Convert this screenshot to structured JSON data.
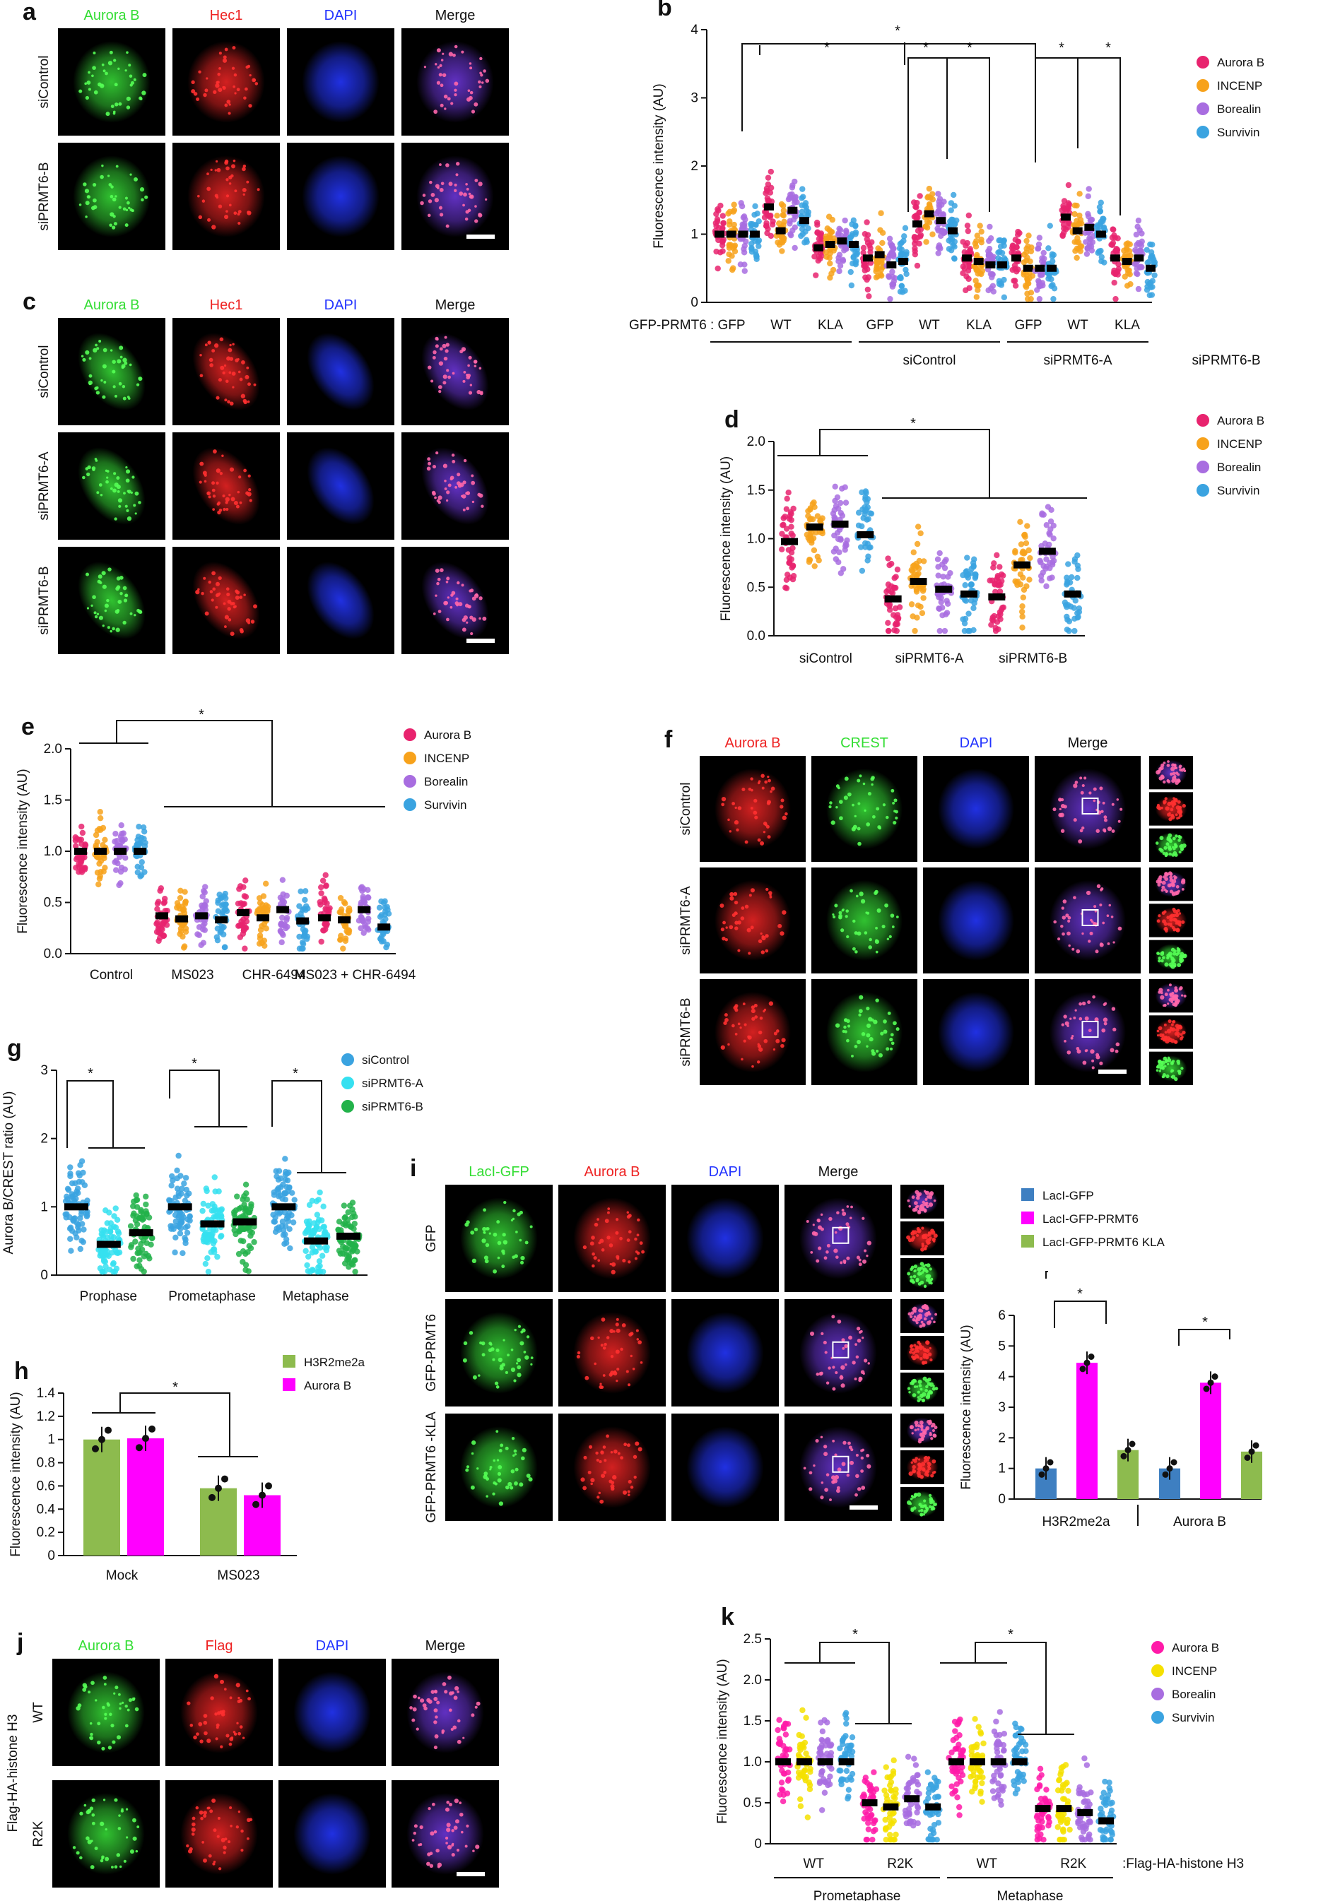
{
  "panels": {
    "a": {
      "label": "a",
      "channels": [
        "Aurora B",
        "Hec1",
        "DAPI",
        "Merge"
      ],
      "channel_colors": [
        "#33dd33",
        "#ee2222",
        "#2233ff",
        "#111111"
      ],
      "rows": [
        "siControl",
        "siPRMT6-B"
      ]
    },
    "c": {
      "label": "c",
      "channels": [
        "Aurora B",
        "Hec1",
        "DAPI",
        "Merge"
      ],
      "channel_colors": [
        "#33dd33",
        "#ee2222",
        "#2233ff",
        "#111111"
      ],
      "rows": [
        "siControl",
        "siPRMT6-A",
        "siPRMT6-B"
      ]
    },
    "f": {
      "label": "f",
      "channels": [
        "Aurora B",
        "CREST",
        "DAPI",
        "Merge"
      ],
      "channel_colors": [
        "#ee2222",
        "#33dd33",
        "#2233ff",
        "#111111"
      ],
      "rows": [
        "siControl",
        "siPRMT6-A",
        "siPRMT6-B"
      ]
    },
    "i": {
      "label": "i",
      "channels": [
        "LacI-GFP",
        "Aurora B",
        "DAPI",
        "Merge"
      ],
      "channel_colors": [
        "#33dd33",
        "#ee2222",
        "#2233ff",
        "#111111"
      ],
      "rows": [
        "GFP",
        "GFP-PRMT6",
        "GFP-PRMT6 -KLA"
      ]
    },
    "j": {
      "label": "j",
      "channels": [
        "Aurora B",
        "Flag",
        "DAPI",
        "Merge"
      ],
      "channel_colors": [
        "#33dd33",
        "#ee2222",
        "#2233ff",
        "#111111"
      ],
      "rows": [
        "WT",
        "R2K"
      ],
      "side_label": "Flag-HA-histone H3"
    }
  },
  "chart_data": [
    {
      "id": "b",
      "label": "b",
      "type": "scatter",
      "ylabel": "Fluorescence intensity (AU)",
      "ylim": [
        0,
        4
      ],
      "yticks": [
        "0",
        "1",
        "2",
        "3",
        "4"
      ],
      "row_label": "GFP-PRMT6 :",
      "x_groups": [
        "GFP",
        "WT",
        "KLA",
        "GFP",
        "WT",
        "KLA",
        "GFP",
        "WT",
        "KLA"
      ],
      "group_labels": [
        "siControl",
        "siPRMT6-A",
        "siPRMT6-B"
      ],
      "legend": [
        "Aurora B",
        "INCENP",
        "Borealin",
        "Survivin"
      ],
      "series": [
        {
          "name": "Aurora B",
          "values": [
            1.0,
            1.4,
            0.8,
            0.65,
            1.15,
            0.65,
            0.65,
            1.25,
            0.65
          ]
        },
        {
          "name": "INCENP",
          "values": [
            1.0,
            1.05,
            0.85,
            0.7,
            1.3,
            0.6,
            0.5,
            1.05,
            0.6
          ]
        },
        {
          "name": "Borealin",
          "values": [
            1.0,
            1.35,
            0.9,
            0.55,
            1.2,
            0.55,
            0.5,
            1.1,
            0.65
          ]
        },
        {
          "name": "Survivin",
          "values": [
            1.0,
            1.2,
            0.85,
            0.6,
            1.05,
            0.55,
            0.5,
            1.0,
            0.5
          ]
        }
      ],
      "significance": "*"
    },
    {
      "id": "d",
      "label": "d",
      "type": "scatter",
      "ylabel": "Fluorescence intensity (AU)",
      "ylim": [
        0,
        2.0
      ],
      "yticks": [
        "0.0",
        "0.5",
        "1.0",
        "1.5",
        "2.0"
      ],
      "x_groups": [
        "siControl",
        "siPRMT6-A",
        "siPRMT6-B"
      ],
      "legend": [
        "Aurora B",
        "INCENP",
        "Borealin",
        "Survivin"
      ],
      "series": [
        {
          "name": "Aurora B",
          "values": [
            0.97,
            0.38,
            0.4
          ]
        },
        {
          "name": "INCENP",
          "values": [
            1.12,
            0.56,
            0.73
          ]
        },
        {
          "name": "Borealin",
          "values": [
            1.15,
            0.48,
            0.87
          ]
        },
        {
          "name": "Survivin",
          "values": [
            1.04,
            0.43,
            0.43
          ]
        }
      ],
      "significance": "*"
    },
    {
      "id": "e",
      "label": "e",
      "type": "scatter",
      "ylabel": "Fluorescence intensity (AU)",
      "ylim": [
        0,
        2.0
      ],
      "yticks": [
        "0.0",
        "0.5",
        "1.0",
        "1.5",
        "2.0"
      ],
      "x_groups": [
        "Control",
        "MS023",
        "CHR-6494",
        "MS023 + CHR-6494"
      ],
      "legend": [
        "Aurora B",
        "INCENP",
        "Borealin",
        "Survivin"
      ],
      "series": [
        {
          "name": "Aurora B",
          "values": [
            1.0,
            0.37,
            0.4,
            0.35
          ]
        },
        {
          "name": "INCENP",
          "values": [
            1.0,
            0.34,
            0.35,
            0.33
          ]
        },
        {
          "name": "Borealin",
          "values": [
            1.0,
            0.37,
            0.43,
            0.43
          ]
        },
        {
          "name": "Survivin",
          "values": [
            1.0,
            0.33,
            0.32,
            0.26
          ]
        }
      ],
      "significance": "*"
    },
    {
      "id": "g",
      "label": "g",
      "type": "scatter",
      "ylabel": "Aurora B/CREST ratio (AU)",
      "ylim": [
        0,
        3
      ],
      "yticks": [
        "0",
        "1",
        "2",
        "3"
      ],
      "x_groups": [
        "Prophase",
        "Prometaphase",
        "Metaphase"
      ],
      "legend": [
        "siControl",
        "siPRMT6-A",
        "siPRMT6-B"
      ],
      "series": [
        {
          "name": "siControl",
          "values": [
            1.0,
            1.0,
            1.0
          ]
        },
        {
          "name": "siPRMT6-A",
          "values": [
            0.45,
            0.75,
            0.5
          ]
        },
        {
          "name": "siPRMT6-B",
          "values": [
            0.62,
            0.78,
            0.57
          ]
        }
      ],
      "significance": "*"
    },
    {
      "id": "h",
      "label": "h",
      "type": "bar",
      "ylabel": "Fluorescence intensity (AU)",
      "ylim": [
        0,
        1.4
      ],
      "yticks": [
        "0",
        "0.2",
        "0.4",
        "0.6",
        "0.8",
        "1",
        "1.2",
        "1.4"
      ],
      "categories": [
        "Mock",
        "MS023"
      ],
      "legend": [
        "H3R2me2a",
        "Aurora B"
      ],
      "series": [
        {
          "name": "H3R2me2a",
          "values": [
            1.0,
            0.58
          ]
        },
        {
          "name": "Aurora B",
          "values": [
            1.01,
            0.52
          ]
        }
      ],
      "significance": "*"
    },
    {
      "id": "i",
      "label": "i",
      "type": "bar",
      "ylabel": "Fluorescence intensity (AU)",
      "ylim": [
        0,
        6
      ],
      "yticks": [
        "0",
        "1",
        "2",
        "3",
        "4",
        "5",
        "6"
      ],
      "categories": [
        "H3R2me2a",
        "Aurora B"
      ],
      "legend": [
        "LacI-GFP",
        "LacI-GFP-PRMT6",
        "LacI-GFP-PRMT6 KLA"
      ],
      "series": [
        {
          "name": "LacI-GFP",
          "values": [
            1.0,
            1.0
          ]
        },
        {
          "name": "LacI-GFP-PRMT6",
          "values": [
            4.45,
            3.8
          ]
        },
        {
          "name": "LacI-GFP-PRMT6 KLA",
          "values": [
            1.6,
            1.55
          ]
        }
      ],
      "significance": "*"
    },
    {
      "id": "k",
      "label": "k",
      "type": "scatter",
      "ylabel": "Fluorescence intensity (AU)",
      "ylim": [
        0,
        2.5
      ],
      "yticks": [
        "0",
        "0.5",
        "1.0",
        "1.5",
        "2.0",
        "2.5"
      ],
      "x_groups": [
        "WT",
        "R2K",
        "WT",
        "R2K"
      ],
      "group_labels": [
        "Prometaphase",
        "Metaphase"
      ],
      "row_label": ":Flag-HA-histone H3",
      "legend": [
        "Aurora B",
        "INCENP",
        "Borealin",
        "Survivin"
      ],
      "series": [
        {
          "name": "Aurora B",
          "values": [
            1.0,
            0.5,
            1.0,
            0.43
          ]
        },
        {
          "name": "INCENP",
          "values": [
            1.0,
            0.45,
            1.0,
            0.43
          ]
        },
        {
          "name": "Borealin",
          "values": [
            1.0,
            0.55,
            1.0,
            0.38
          ]
        },
        {
          "name": "Survivin",
          "values": [
            1.0,
            0.45,
            1.0,
            0.28
          ]
        }
      ],
      "significance": "*"
    }
  ],
  "colors": {
    "aurora": "#e8236e",
    "incenp": "#f7a21b",
    "borealin": "#a86de0",
    "survivin": "#3aa3e0",
    "sictl": "#3aa3e0",
    "sia": "#35e0f0",
    "sib": "#22b24a",
    "h3": "#8dbb4e",
    "magenta": "#ff00ff",
    "lacgfp": "#3e7fc1",
    "kla": "#8dbb4e",
    "k_incenp": "#f5e000",
    "k_aurora": "#ff1aa8"
  }
}
